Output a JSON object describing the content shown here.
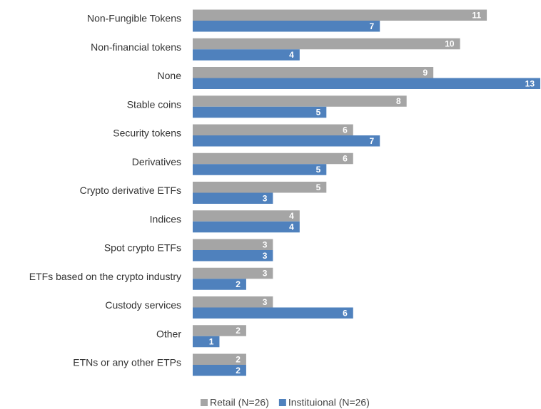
{
  "chart_data": {
    "type": "bar",
    "orientation": "horizontal",
    "categories": [
      "Non-Fungible Tokens",
      "Non-financial tokens",
      "None",
      "Stable coins",
      "Security tokens",
      "Derivatives",
      "Crypto derivative ETFs",
      "Indices",
      "Spot crypto ETFs",
      "ETFs based on the crypto industry",
      "Custody services",
      "Other",
      "ETNs or any other ETPs"
    ],
    "series": [
      {
        "name": "Retail (N=26)",
        "color": "#a5a5a5",
        "values": [
          11,
          10,
          9,
          8,
          6,
          6,
          5,
          4,
          3,
          3,
          3,
          2,
          2
        ]
      },
      {
        "name": "Instituional (N=26)",
        "color": "#4f81bd",
        "values": [
          7,
          4,
          13,
          5,
          7,
          5,
          3,
          4,
          3,
          2,
          6,
          1,
          2
        ]
      }
    ],
    "xlim": [
      0,
      13
    ],
    "legend": "bottom"
  }
}
